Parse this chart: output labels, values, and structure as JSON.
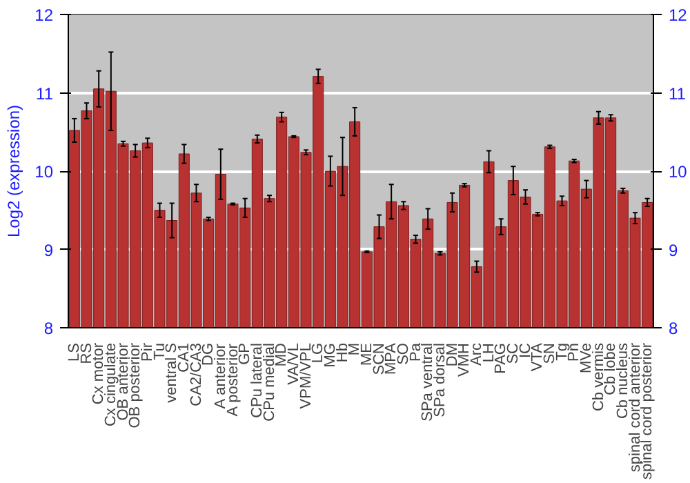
{
  "chart_data": {
    "type": "bar",
    "ylabel": "Log2 (expression)",
    "categories": [
      "LS",
      "RS",
      "Cx motor",
      "Cx cingulate",
      "OB anterior",
      "OB posterior",
      "Pir",
      "Tu",
      "ventral S",
      "CA1",
      "CA2/CA3",
      "DG",
      "A anterior",
      "A posterior",
      "GP",
      "CPu lateral",
      "CPu medial",
      "MD",
      "VA/VL",
      "VPM/VPL",
      "LG",
      "MG",
      "Hb",
      "M",
      "ME",
      "SCN",
      "MPA",
      "SO",
      "Pa",
      "SPa ventral",
      "SPa dorsal",
      "DM",
      "VMH",
      "Arc",
      "LH",
      "PAG",
      "SC",
      "IC",
      "VTA",
      "SN",
      "Tg",
      "Pn",
      "MVe",
      "Cb vermis",
      "Cb lobe",
      "Cb nucleus",
      "spinal cord anterior",
      "spinal cord posterior"
    ],
    "values": [
      10.52,
      10.77,
      11.05,
      11.02,
      10.35,
      10.26,
      10.36,
      9.5,
      9.37,
      10.22,
      9.72,
      9.39,
      9.96,
      9.58,
      9.53,
      10.41,
      9.65,
      10.69,
      10.44,
      10.24,
      11.21,
      10.0,
      10.06,
      10.63,
      8.97,
      9.29,
      9.61,
      9.56,
      9.13,
      9.39,
      8.95,
      9.6,
      9.82,
      8.78,
      10.12,
      9.29,
      9.88,
      9.67,
      9.45,
      10.31,
      9.62,
      10.13,
      9.77,
      10.68,
      10.68,
      9.75,
      9.4,
      9.6
    ],
    "errors": [
      0.15,
      0.1,
      0.23,
      0.5,
      0.03,
      0.08,
      0.06,
      0.09,
      0.22,
      0.12,
      0.11,
      0.02,
      0.32,
      0.01,
      0.12,
      0.05,
      0.04,
      0.06,
      0.01,
      0.03,
      0.09,
      0.19,
      0.37,
      0.18,
      0.01,
      0.15,
      0.22,
      0.05,
      0.05,
      0.13,
      0.02,
      0.12,
      0.02,
      0.07,
      0.14,
      0.1,
      0.18,
      0.09,
      0.02,
      0.02,
      0.06,
      0.02,
      0.11,
      0.08,
      0.04,
      0.03,
      0.07,
      0.05
    ],
    "color": "#b83232",
    "ylim": [
      8,
      12
    ],
    "yticks": [
      8,
      9,
      10,
      11,
      12
    ],
    "y2lim": [
      8,
      12
    ],
    "y2ticks": [
      8,
      9,
      10,
      11,
      12
    ],
    "grid": "y"
  }
}
